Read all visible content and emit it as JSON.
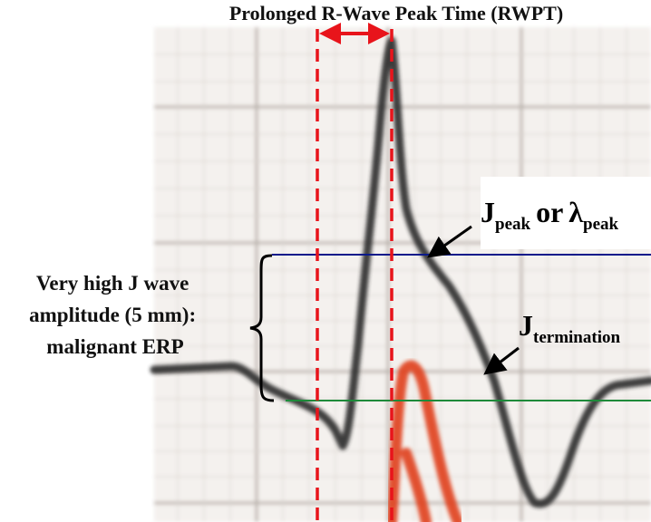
{
  "title": "Prolonged R-Wave Peak Time (RWPT)",
  "jpeak_label": {
    "main": "J",
    "sub": "peak",
    "connector": "or",
    "lambda": "λ",
    "lambda_sub": "peak"
  },
  "jtermination_label": {
    "main": "J",
    "sub": "termination"
  },
  "amplitude_note": {
    "lines": [
      "Very high J wave",
      "amplitude (5 mm):",
      "malignant ERP"
    ]
  }
}
